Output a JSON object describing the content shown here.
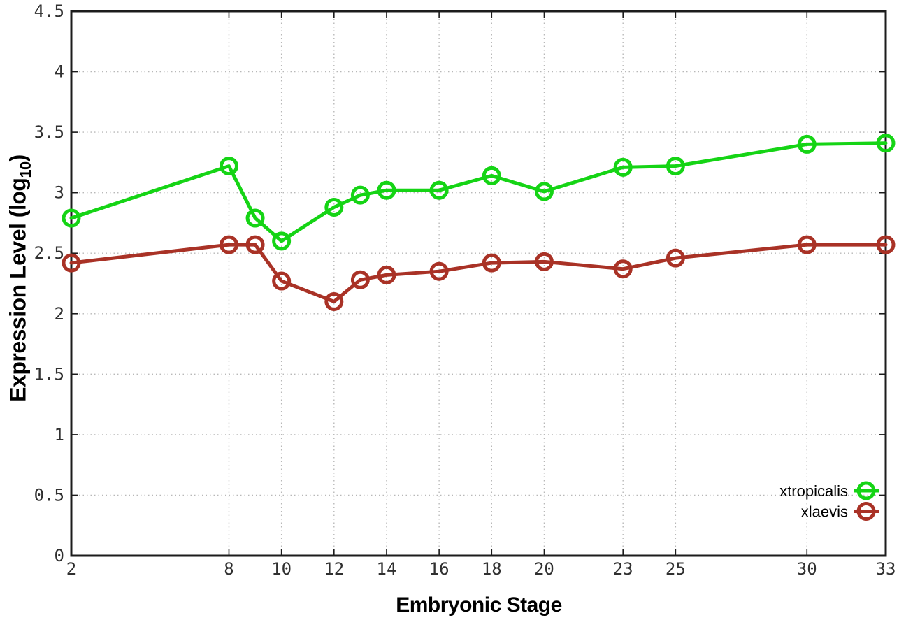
{
  "page": {
    "background": "#ffffff"
  },
  "chart_data": {
    "type": "line",
    "title": "",
    "xlabel": "Embryonic Stage",
    "ylabel": {
      "text": "Expression Level (log",
      "sub": "10",
      "suffix": ")"
    },
    "x_axis": {
      "range": [
        2,
        33
      ],
      "ticks": [
        2,
        8,
        10,
        12,
        14,
        16,
        18,
        20,
        23,
        25,
        30,
        33
      ],
      "labels": [
        "2",
        "8",
        "10",
        "12",
        "14",
        "16",
        "18",
        "20",
        "23",
        "25",
        "30",
        "33"
      ]
    },
    "y_axis": {
      "range": [
        0,
        4.5
      ],
      "ticks": [
        0,
        0.5,
        1,
        1.5,
        2,
        2.5,
        3,
        3.5,
        4,
        4.5
      ],
      "labels": [
        "0",
        "0.5",
        "1",
        "1.5",
        "2",
        "2.5",
        "3",
        "3.5",
        "4",
        "4.5"
      ]
    },
    "grid": true,
    "legend": {
      "position": "bottom-right",
      "entries": [
        "xtropicalis",
        "xlaevis"
      ]
    },
    "x": [
      2,
      8,
      9,
      10,
      12,
      13,
      14,
      16,
      18,
      20,
      23,
      25,
      30,
      33
    ],
    "series": [
      {
        "name": "xtropicalis",
        "color": "#15d415",
        "values": [
          2.79,
          3.22,
          2.79,
          2.6,
          2.88,
          2.98,
          3.02,
          3.02,
          3.14,
          3.01,
          3.21,
          3.22,
          3.4,
          3.41
        ]
      },
      {
        "name": "xlaevis",
        "color": "#a93226",
        "values": [
          2.42,
          2.57,
          2.57,
          2.27,
          2.1,
          2.28,
          2.32,
          2.35,
          2.42,
          2.43,
          2.37,
          2.46,
          2.57,
          2.57
        ]
      }
    ],
    "colors": {
      "grid": "#b8b8b8",
      "border": "#1c1c1c",
      "tick_text": "#303030",
      "title_text": "#000000"
    }
  }
}
